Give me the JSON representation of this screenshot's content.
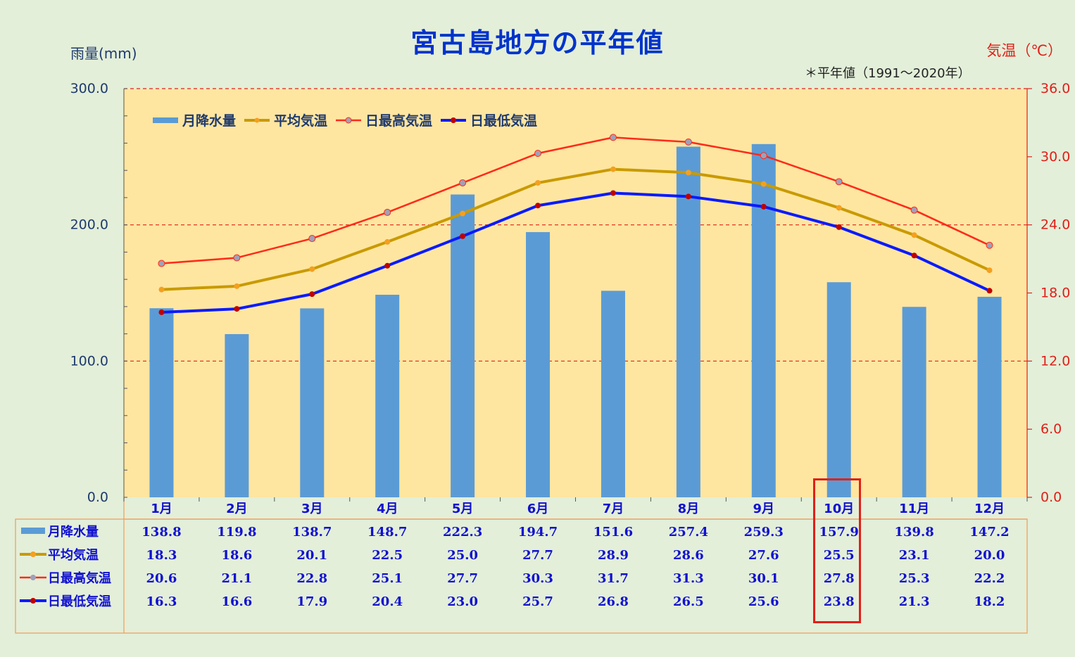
{
  "chart_data": {
    "type": "bar+line",
    "title": "宮古島地方の平年値",
    "subtitle": "＊平年値（1991～2020年）",
    "y_left_label": "雨量(mm)",
    "y_right_label": "気温（℃）",
    "y_left_range": [
      0,
      300
    ],
    "y_left_ticks": [
      "0.0",
      "100.0",
      "200.0",
      "300.0"
    ],
    "y_right_range": [
      0,
      36
    ],
    "y_right_ticks": [
      "0.0",
      "6.0",
      "12.0",
      "18.0",
      "24.0",
      "30.0",
      "36.0"
    ],
    "categories": [
      "1月",
      "2月",
      "3月",
      "4月",
      "5月",
      "6月",
      "7月",
      "8月",
      "9月",
      "10月",
      "11月",
      "12月"
    ],
    "series": [
      {
        "name": "月降水量",
        "kind": "bar",
        "axis": "left",
        "color": "#5b9bd5",
        "values": [
          138.8,
          119.8,
          138.7,
          148.7,
          222.3,
          194.7,
          151.6,
          257.4,
          259.3,
          157.9,
          139.8,
          147.2
        ],
        "labels": [
          "138.8",
          "119.8",
          "138.7",
          "148.7",
          "222.3",
          "194.7",
          "151.6",
          "257.4",
          "259.3",
          "157.9",
          "139.8",
          "147.2"
        ]
      },
      {
        "name": "平均気温",
        "kind": "line",
        "axis": "right",
        "color": "#c99a00",
        "marker": "#f4a020",
        "values": [
          18.3,
          18.6,
          20.1,
          22.5,
          25.0,
          27.7,
          28.9,
          28.6,
          27.6,
          25.5,
          23.1,
          20.0
        ],
        "labels": [
          "18.3",
          "18.6",
          "20.1",
          "22.5",
          "25.0",
          "27.7",
          "28.9",
          "28.6",
          "27.6",
          "25.5",
          "23.1",
          "20.0"
        ]
      },
      {
        "name": "日最高気温",
        "kind": "line",
        "axis": "right",
        "color": "#ff2a1a",
        "marker": "#a0a0b8",
        "values": [
          20.6,
          21.1,
          22.8,
          25.1,
          27.7,
          30.3,
          31.7,
          31.3,
          30.1,
          27.8,
          25.3,
          22.2
        ],
        "labels": [
          "20.6",
          "21.1",
          "22.8",
          "25.1",
          "27.7",
          "30.3",
          "31.7",
          "31.3",
          "30.1",
          "27.8",
          "25.3",
          "22.2"
        ]
      },
      {
        "name": "日最低気温",
        "kind": "line",
        "axis": "right",
        "color": "#0a1aff",
        "marker": "#c00000",
        "values": [
          16.3,
          16.6,
          17.9,
          20.4,
          23.0,
          25.7,
          26.8,
          26.5,
          25.6,
          23.8,
          21.3,
          18.2
        ],
        "labels": [
          "16.3",
          "16.6",
          "17.9",
          "20.4",
          "23.0",
          "25.7",
          "26.8",
          "26.5",
          "25.6",
          "23.8",
          "21.3",
          "18.2"
        ]
      }
    ],
    "gridlines": "dashed red at 100, 200, 300",
    "legend_position": "top-left inside plot",
    "highlighted_category": "10月",
    "colors": {
      "plot_bg": "#ffe6a0",
      "page_bg": "#e3efd9",
      "grid": "#e0201a",
      "table_border": "#f0a060",
      "table_text": "#1010d0"
    }
  }
}
